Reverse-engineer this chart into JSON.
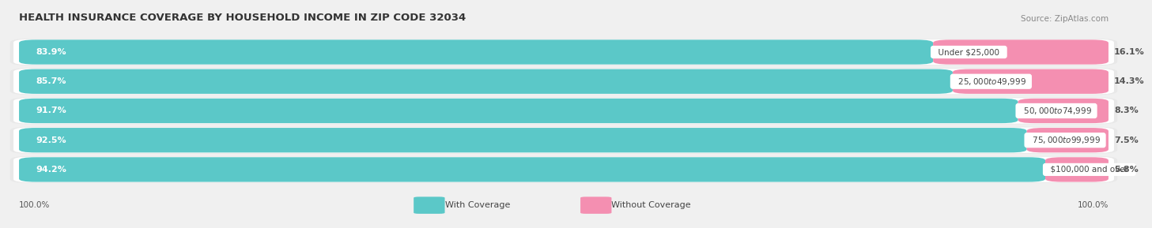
{
  "title": "HEALTH INSURANCE COVERAGE BY HOUSEHOLD INCOME IN ZIP CODE 32034",
  "source": "Source: ZipAtlas.com",
  "categories": [
    "Under $25,000",
    "$25,000 to $49,999",
    "$50,000 to $74,999",
    "$75,000 to $99,999",
    "$100,000 and over"
  ],
  "with_coverage": [
    83.9,
    85.7,
    91.7,
    92.5,
    94.2
  ],
  "without_coverage": [
    16.1,
    14.3,
    8.3,
    7.5,
    5.8
  ],
  "color_with": "#5BC8C8",
  "color_without": "#F48FB1",
  "background_color": "#f0f0f0",
  "bar_background": "#ffffff",
  "title_fontsize": 9.5,
  "label_fontsize": 8.0,
  "source_fontsize": 7.5,
  "legend_fontsize": 8.0,
  "footer_fontsize": 7.5,
  "cat_label_fontsize": 7.5
}
